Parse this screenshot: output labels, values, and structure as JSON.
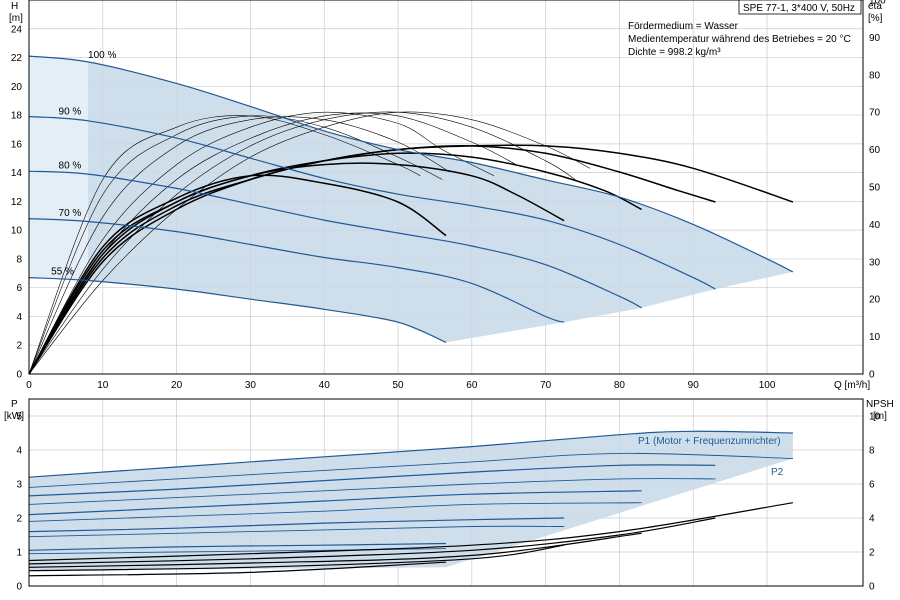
{
  "header": {
    "title": "SPE 77-1, 3*400 V, 50Hz",
    "info": [
      "Fördermedium = Wasser",
      "Medientemperatur während des Betriebes = 20 °C",
      "Dichte = 998.2 kg/m³"
    ]
  },
  "colors": {
    "curve": "#1f5a96",
    "fill": "#c7d8e8",
    "eff": "#000000",
    "grid": "#cccccc"
  },
  "chart_data": [
    {
      "type": "line",
      "x_axis": {
        "label": "Q [m³/h]",
        "ticks": [
          "0",
          "10",
          "20",
          "30",
          "40",
          "50",
          "60",
          "70",
          "80",
          "90",
          "100"
        ],
        "range": [
          0,
          113
        ]
      },
      "y_axis_left": {
        "label_line1": "H",
        "label_line2": "[m]",
        "ticks": [
          "0",
          "2",
          "4",
          "6",
          "8",
          "10",
          "12",
          "14",
          "16",
          "18",
          "20",
          "22",
          "24"
        ],
        "range": [
          0,
          26
        ]
      },
      "y_axis_right": {
        "label_line1": "eta",
        "label_line2": "[%]",
        "ticks": [
          "0",
          "10",
          "20",
          "30",
          "40",
          "50",
          "60",
          "70",
          "80",
          "90",
          "100"
        ],
        "range": [
          0,
          100
        ]
      },
      "grid": true,
      "head_curves": [
        {
          "name": "100 %",
          "points": [
            [
              0,
              22.1
            ],
            [
              8,
              21.7
            ],
            [
              20,
              20.2
            ],
            [
              30,
              18.6
            ],
            [
              40,
              16.9
            ],
            [
              50,
              15.6
            ],
            [
              60,
              14.7
            ],
            [
              70,
              13.5
            ],
            [
              80,
              12.3
            ],
            [
              90,
              10.4
            ],
            [
              100,
              8.0
            ],
            [
              103.5,
              7.1
            ]
          ]
        },
        {
          "name": "90 %",
          "points": [
            [
              0,
              17.9
            ],
            [
              8,
              17.6
            ],
            [
              20,
              16.4
            ],
            [
              30,
              15.0
            ],
            [
              40,
              13.6
            ],
            [
              50,
              12.5
            ],
            [
              60,
              11.7
            ],
            [
              70,
              10.7
            ],
            [
              80,
              9.0
            ],
            [
              90,
              6.7
            ],
            [
              93,
              5.9
            ]
          ]
        },
        {
          "name": "80 %",
          "points": [
            [
              0,
              14.1
            ],
            [
              8,
              13.9
            ],
            [
              20,
              12.9
            ],
            [
              30,
              11.8
            ],
            [
              40,
              10.7
            ],
            [
              50,
              9.8
            ],
            [
              60,
              8.9
            ],
            [
              70,
              7.6
            ],
            [
              80,
              5.4
            ],
            [
              83,
              4.6
            ]
          ]
        },
        {
          "name": "70 %",
          "points": [
            [
              0,
              10.8
            ],
            [
              8,
              10.6
            ],
            [
              20,
              9.9
            ],
            [
              30,
              9.0
            ],
            [
              40,
              8.1
            ],
            [
              50,
              7.4
            ],
            [
              60,
              6.3
            ],
            [
              70,
              4.0
            ],
            [
              72.5,
              3.6
            ]
          ]
        },
        {
          "name": "55 %",
          "points": [
            [
              0,
              6.7
            ],
            [
              8,
              6.5
            ],
            [
              20,
              5.9
            ],
            [
              30,
              5.2
            ],
            [
              40,
              4.5
            ],
            [
              50,
              3.6
            ],
            [
              56.5,
              2.2
            ]
          ]
        }
      ],
      "operating_area_min_q": 8,
      "efficiency_curves_thin": [
        [
          [
            0,
            0
          ],
          [
            10,
            25
          ],
          [
            20,
            44
          ],
          [
            30,
            58
          ],
          [
            40,
            66
          ],
          [
            50,
            70
          ],
          [
            60,
            68
          ],
          [
            70,
            61
          ],
          [
            76,
            55
          ]
        ],
        [
          [
            0,
            0
          ],
          [
            10,
            28
          ],
          [
            20,
            48
          ],
          [
            30,
            61
          ],
          [
            40,
            68
          ],
          [
            50,
            70
          ],
          [
            60,
            66
          ],
          [
            70,
            57
          ],
          [
            74,
            52
          ]
        ],
        [
          [
            0,
            0
          ],
          [
            10,
            32
          ],
          [
            20,
            52
          ],
          [
            30,
            63
          ],
          [
            40,
            69
          ],
          [
            50,
            69
          ],
          [
            60,
            62
          ],
          [
            66,
            56
          ]
        ],
        [
          [
            0,
            0
          ],
          [
            10,
            36
          ],
          [
            20,
            56
          ],
          [
            30,
            66
          ],
          [
            40,
            70
          ],
          [
            50,
            67
          ],
          [
            56,
            60
          ],
          [
            63,
            53
          ]
        ],
        [
          [
            0,
            0
          ],
          [
            10,
            42
          ],
          [
            20,
            61
          ],
          [
            30,
            68
          ],
          [
            40,
            68
          ],
          [
            50,
            62
          ],
          [
            57,
            54
          ]
        ],
        [
          [
            0,
            0
          ],
          [
            10,
            48
          ],
          [
            20,
            64
          ],
          [
            30,
            69
          ],
          [
            40,
            66
          ],
          [
            50,
            58
          ],
          [
            56,
            52
          ]
        ],
        [
          [
            0,
            0
          ],
          [
            10,
            52
          ],
          [
            20,
            66
          ],
          [
            30,
            69
          ],
          [
            40,
            64
          ],
          [
            50,
            56
          ],
          [
            53,
            53
          ]
        ]
      ],
      "efficiency_curves_thick": [
        [
          [
            0,
            0
          ],
          [
            10,
            30
          ],
          [
            20,
            44
          ],
          [
            30,
            52
          ],
          [
            40,
            57
          ],
          [
            50,
            60
          ],
          [
            60,
            61
          ],
          [
            70,
            61
          ],
          [
            80,
            59
          ],
          [
            90,
            55
          ],
          [
            103.5,
            46
          ]
        ],
        [
          [
            0,
            0
          ],
          [
            10,
            31
          ],
          [
            20,
            45
          ],
          [
            30,
            52
          ],
          [
            40,
            57
          ],
          [
            50,
            60
          ],
          [
            60,
            61
          ],
          [
            70,
            59
          ],
          [
            80,
            54
          ],
          [
            88,
            49
          ],
          [
            93,
            46
          ]
        ],
        [
          [
            0,
            0
          ],
          [
            10,
            32
          ],
          [
            20,
            46
          ],
          [
            30,
            53
          ],
          [
            40,
            57
          ],
          [
            50,
            59
          ],
          [
            60,
            58
          ],
          [
            70,
            54
          ],
          [
            78,
            49
          ],
          [
            83,
            44
          ]
        ],
        [
          [
            0,
            0
          ],
          [
            10,
            33
          ],
          [
            20,
            46
          ],
          [
            30,
            53
          ],
          [
            40,
            56
          ],
          [
            50,
            56
          ],
          [
            60,
            53
          ],
          [
            66,
            48
          ],
          [
            72.5,
            41
          ]
        ],
        [
          [
            0,
            0
          ],
          [
            10,
            34
          ],
          [
            20,
            47
          ],
          [
            30,
            53
          ],
          [
            40,
            51
          ],
          [
            50,
            46
          ],
          [
            56.5,
            37
          ]
        ]
      ]
    },
    {
      "type": "line",
      "x_axis": {
        "range": [
          0,
          113
        ]
      },
      "y_axis_left": {
        "label_line1": "P",
        "label_line2": "[kW]",
        "ticks": [
          "0",
          "1",
          "2",
          "3",
          "4",
          "5"
        ],
        "range": [
          0,
          5.5
        ]
      },
      "y_axis_right": {
        "label_line1": "NPSH",
        "label_line2": "[m]",
        "ticks": [
          "0",
          "2",
          "4",
          "6",
          "8",
          "10"
        ],
        "range": [
          0,
          11
        ]
      },
      "grid": true,
      "power_labels": {
        "p1": "P1 (Motor + Frequenzumrichter)",
        "p2": "P2"
      },
      "p1_curves": [
        [
          [
            0,
            3.2
          ],
          [
            20,
            3.5
          ],
          [
            40,
            3.8
          ],
          [
            60,
            4.1
          ],
          [
            80,
            4.45
          ],
          [
            90,
            4.55
          ],
          [
            103.5,
            4.5
          ]
        ],
        [
          [
            0,
            2.65
          ],
          [
            20,
            2.85
          ],
          [
            40,
            3.1
          ],
          [
            60,
            3.35
          ],
          [
            80,
            3.55
          ],
          [
            93,
            3.55
          ]
        ],
        [
          [
            0,
            2.1
          ],
          [
            20,
            2.3
          ],
          [
            40,
            2.5
          ],
          [
            60,
            2.7
          ],
          [
            83,
            2.8
          ]
        ],
        [
          [
            0,
            1.6
          ],
          [
            20,
            1.7
          ],
          [
            40,
            1.85
          ],
          [
            60,
            1.95
          ],
          [
            72.5,
            2.0
          ]
        ],
        [
          [
            0,
            1.05
          ],
          [
            20,
            1.15
          ],
          [
            40,
            1.2
          ],
          [
            56.5,
            1.25
          ]
        ]
      ],
      "p2_curves": [
        [
          [
            0,
            2.9
          ],
          [
            20,
            3.15
          ],
          [
            40,
            3.4
          ],
          [
            60,
            3.65
          ],
          [
            80,
            3.9
          ],
          [
            103.5,
            3.75
          ]
        ],
        [
          [
            0,
            2.4
          ],
          [
            20,
            2.6
          ],
          [
            40,
            2.8
          ],
          [
            60,
            3.0
          ],
          [
            80,
            3.15
          ],
          [
            93,
            3.15
          ]
        ],
        [
          [
            0,
            1.9
          ],
          [
            20,
            2.05
          ],
          [
            40,
            2.2
          ],
          [
            60,
            2.4
          ],
          [
            83,
            2.45
          ]
        ],
        [
          [
            0,
            1.45
          ],
          [
            20,
            1.55
          ],
          [
            40,
            1.65
          ],
          [
            60,
            1.75
          ],
          [
            72.5,
            1.75
          ]
        ],
        [
          [
            0,
            0.95
          ],
          [
            20,
            1.0
          ],
          [
            40,
            1.05
          ],
          [
            56.5,
            1.1
          ]
        ]
      ],
      "npsh_curves": [
        [
          [
            0,
            1.5
          ],
          [
            30,
            1.9
          ],
          [
            60,
            2.4
          ],
          [
            80,
            3.2
          ],
          [
            103.5,
            4.9
          ]
        ],
        [
          [
            0,
            1.3
          ],
          [
            30,
            1.6
          ],
          [
            60,
            2.1
          ],
          [
            80,
            3.0
          ],
          [
            93,
            4.0
          ]
        ],
        [
          [
            0,
            1.1
          ],
          [
            30,
            1.35
          ],
          [
            60,
            1.8
          ],
          [
            83,
            3.1
          ]
        ],
        [
          [
            0,
            0.9
          ],
          [
            30,
            1.1
          ],
          [
            60,
            1.6
          ],
          [
            72.5,
            2.4
          ]
        ],
        [
          [
            0,
            0.6
          ],
          [
            30,
            0.8
          ],
          [
            56.5,
            1.4
          ]
        ]
      ]
    }
  ]
}
